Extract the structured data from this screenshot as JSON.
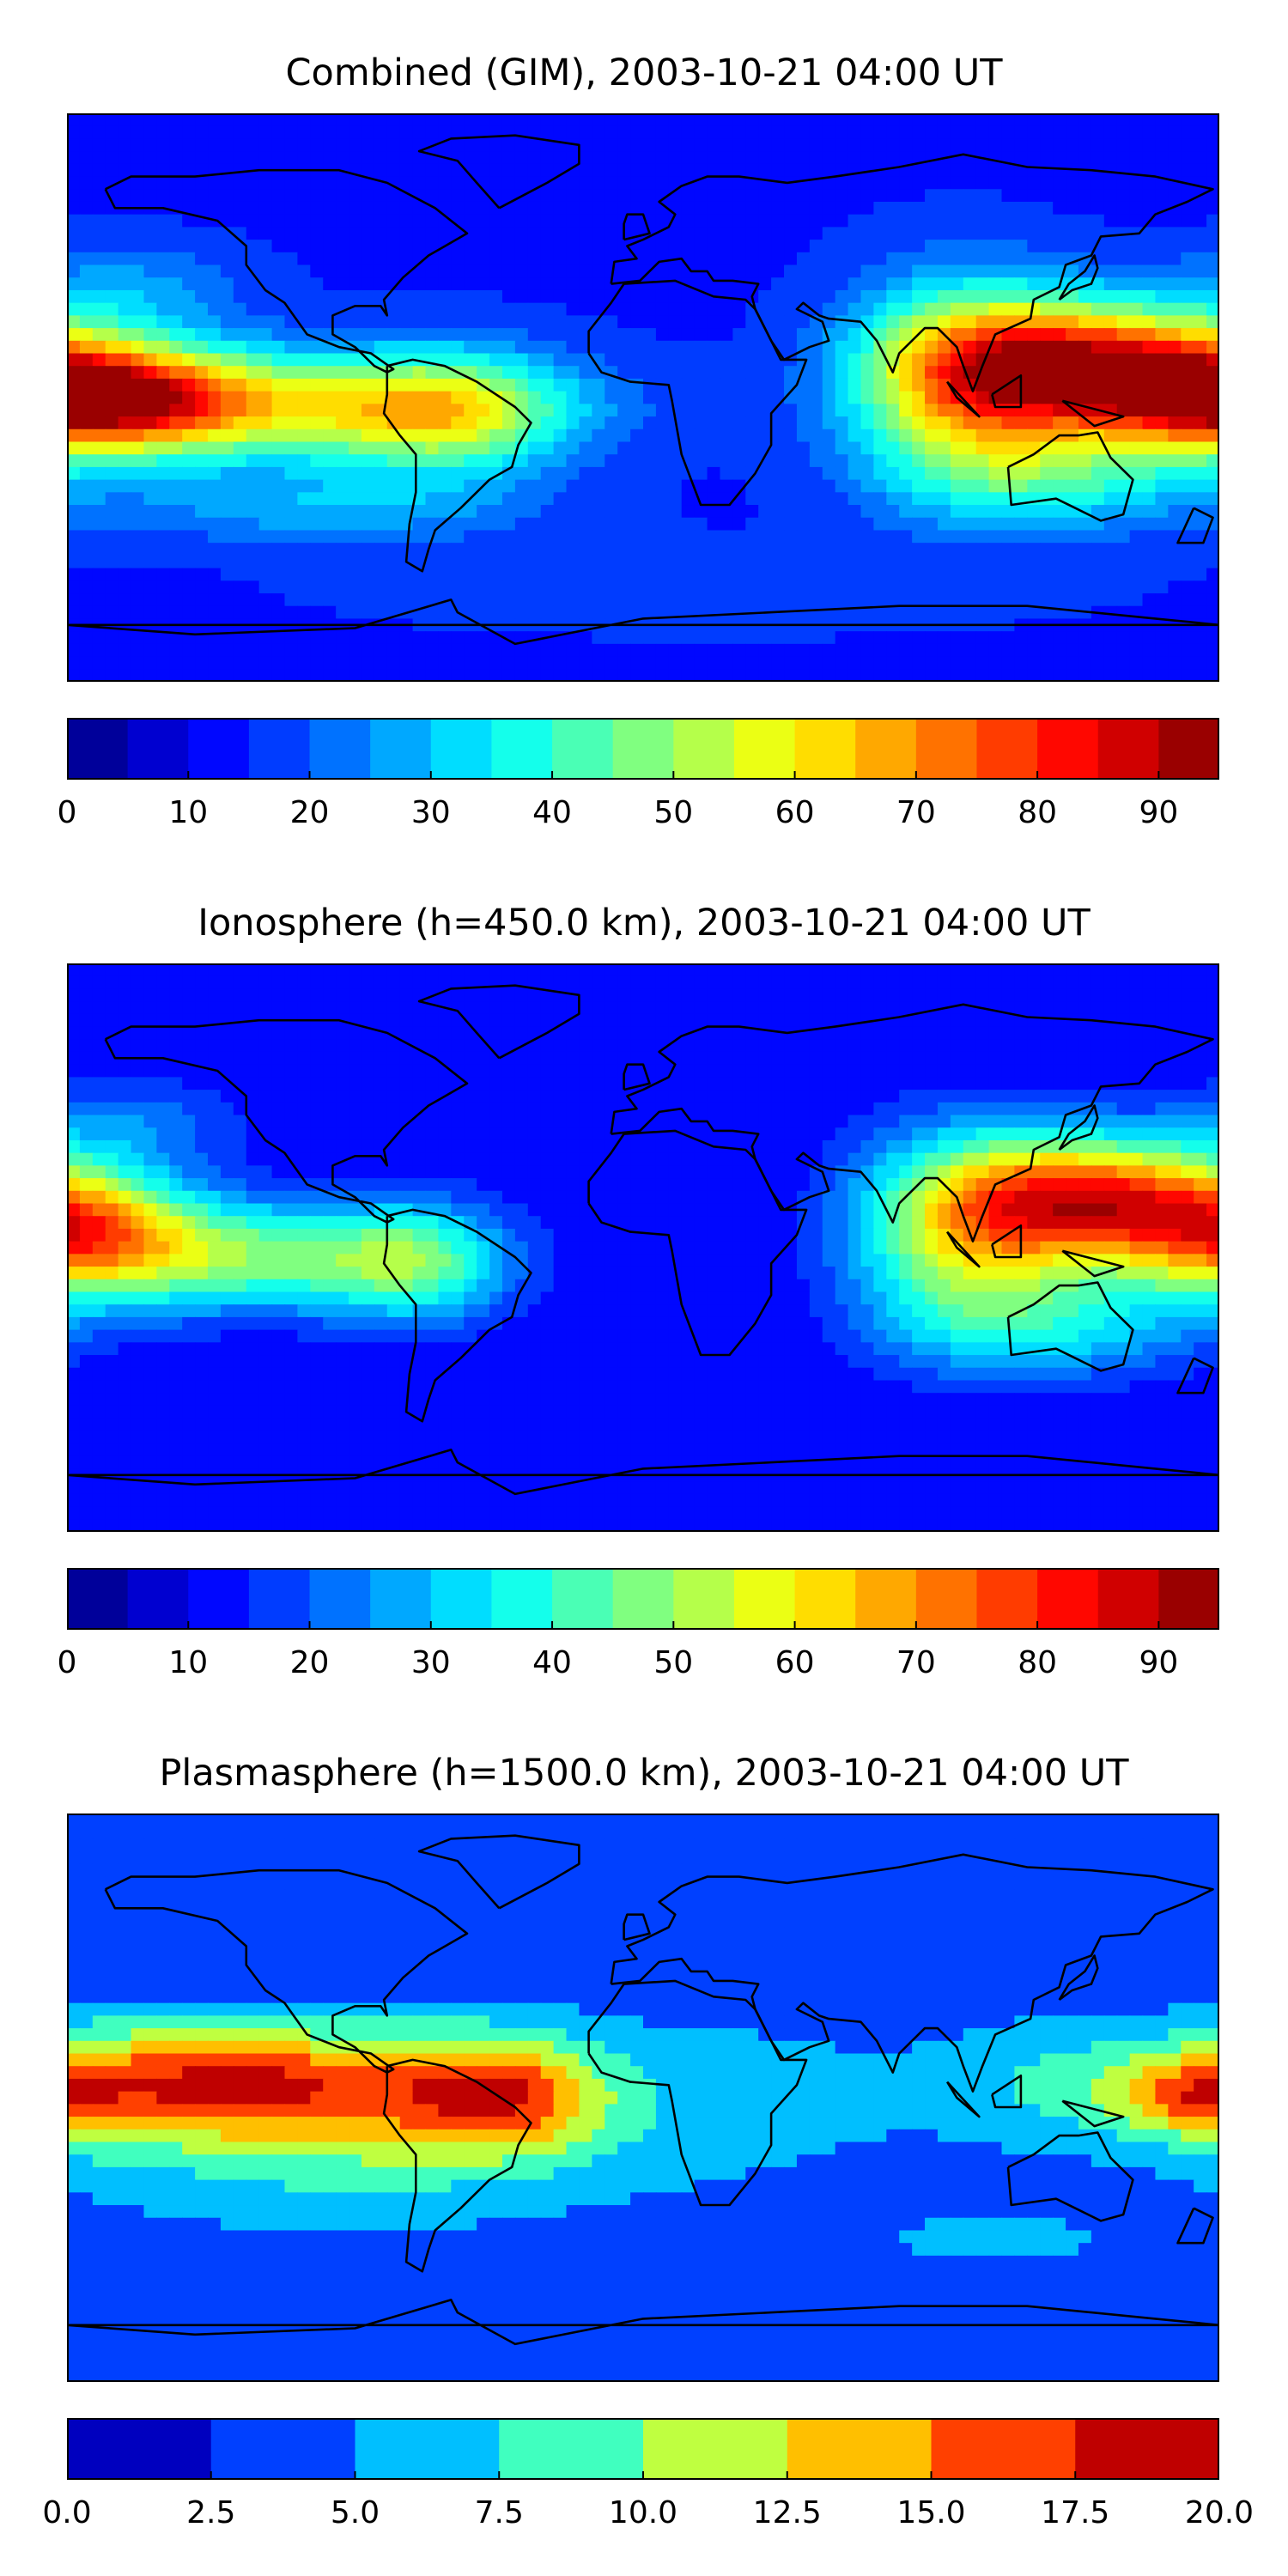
{
  "chart_data": [
    {
      "type": "heatmap",
      "title": "Combined (GIM), 2003-10-21 04:00 UT",
      "xlabel": "",
      "ylabel": "",
      "colorbar": {
        "levels": [
          0,
          5,
          10,
          15,
          20,
          25,
          30,
          35,
          40,
          45,
          50,
          55,
          60,
          65,
          70,
          75,
          80,
          85,
          90,
          95
        ],
        "tick_values": [
          0,
          10,
          20,
          30,
          40,
          50,
          60,
          70,
          80,
          90
        ],
        "tick_labels": [
          "0",
          "10",
          "20",
          "30",
          "40",
          "50",
          "60",
          "70",
          "80",
          "90"
        ]
      },
      "blobs": [
        {
          "lon": -170,
          "lat": 0,
          "value": 72,
          "spread_lon": 30,
          "spread_lat": 12
        },
        {
          "lon": -110,
          "lat": -3,
          "value": 52,
          "spread_lon": 55,
          "spread_lat": 12
        },
        {
          "lon": -60,
          "lat": -5,
          "value": 42,
          "spread_lon": 25,
          "spread_lat": 14
        },
        {
          "lon": 140,
          "lat": 10,
          "value": 78,
          "spread_lon": 35,
          "spread_lat": 14
        },
        {
          "lon": 100,
          "lat": 5,
          "value": 55,
          "spread_lon": 25,
          "spread_lat": 22
        },
        {
          "lon": 130,
          "lat": -25,
          "value": 35,
          "spread_lon": 35,
          "spread_lat": 12
        },
        {
          "lon": -160,
          "lat": 35,
          "value": 25,
          "spread_lon": 25,
          "spread_lat": 10
        },
        {
          "lon": -100,
          "lat": -35,
          "value": 28,
          "spread_lon": 45,
          "spread_lat": 8
        },
        {
          "lon": 20,
          "lat": -60,
          "value": 18,
          "spread_lon": 80,
          "spread_lat": 10
        }
      ],
      "background": 14
    },
    {
      "type": "heatmap",
      "title": "Ionosphere  (h=450.0 km), 2003-10-21 04:00 UT",
      "xlabel": "",
      "ylabel": "",
      "colorbar": {
        "levels": [
          0,
          5,
          10,
          15,
          20,
          25,
          30,
          35,
          40,
          45,
          50,
          55,
          60,
          65,
          70,
          75,
          80,
          85,
          90,
          95
        ],
        "tick_values": [
          0,
          10,
          20,
          30,
          40,
          50,
          60,
          70,
          80,
          90
        ],
        "tick_labels": [
          "0",
          "10",
          "20",
          "30",
          "40",
          "50",
          "60",
          "70",
          "80",
          "90"
        ]
      },
      "blobs": [
        {
          "lon": -175,
          "lat": 5,
          "value": 58,
          "spread_lon": 25,
          "spread_lat": 14
        },
        {
          "lon": -120,
          "lat": -3,
          "value": 45,
          "spread_lon": 40,
          "spread_lat": 12
        },
        {
          "lon": -70,
          "lat": -5,
          "value": 35,
          "spread_lon": 20,
          "spread_lat": 14
        },
        {
          "lon": 140,
          "lat": 15,
          "value": 72,
          "spread_lon": 30,
          "spread_lat": 14
        },
        {
          "lon": 100,
          "lat": 5,
          "value": 50,
          "spread_lon": 25,
          "spread_lat": 22
        },
        {
          "lon": 130,
          "lat": -25,
          "value": 30,
          "spread_lon": 35,
          "spread_lat": 12
        },
        {
          "lon": -160,
          "lat": 40,
          "value": 22,
          "spread_lon": 25,
          "spread_lat": 10
        }
      ],
      "background": 10
    },
    {
      "type": "heatmap",
      "title": "Plasmasphere (h=1500.0 km), 2003-10-21 04:00 UT",
      "xlabel": "",
      "ylabel": "",
      "colorbar": {
        "levels": [
          0,
          2.5,
          5,
          7.5,
          10,
          12.5,
          15,
          17.5,
          20
        ],
        "tick_values": [
          0,
          2.5,
          5,
          7.5,
          10,
          12.5,
          15,
          17.5,
          20
        ],
        "tick_labels": [
          "0.0",
          "2.5",
          "5.0",
          "7.5",
          "10.0",
          "12.5",
          "15.0",
          "17.5",
          "20.0"
        ]
      },
      "blobs": [
        {
          "lon": -130,
          "lat": 5,
          "value": 13.5,
          "spread_lon": 25,
          "spread_lat": 12
        },
        {
          "lon": -75,
          "lat": 5,
          "value": 11,
          "spread_lon": 30,
          "spread_lat": 14
        },
        {
          "lon": -40,
          "lat": 0,
          "value": 10.5,
          "spread_lon": 20,
          "spread_lat": 12
        },
        {
          "lon": -170,
          "lat": 5,
          "value": 10,
          "spread_lon": 20,
          "spread_lat": 14
        },
        {
          "lon": -100,
          "lat": -15,
          "value": 8,
          "spread_lon": 60,
          "spread_lat": 20
        },
        {
          "lon": 20,
          "lat": 0,
          "value": 6,
          "spread_lon": 60,
          "spread_lat": 22
        },
        {
          "lon": 140,
          "lat": 5,
          "value": 8,
          "spread_lon": 30,
          "spread_lat": 14
        },
        {
          "lon": 170,
          "lat": 0,
          "value": 9,
          "spread_lon": 15,
          "spread_lat": 8
        },
        {
          "lon": 110,
          "lat": -45,
          "value": 6,
          "spread_lon": 30,
          "spread_lat": 6
        }
      ],
      "background": 3
    }
  ]
}
